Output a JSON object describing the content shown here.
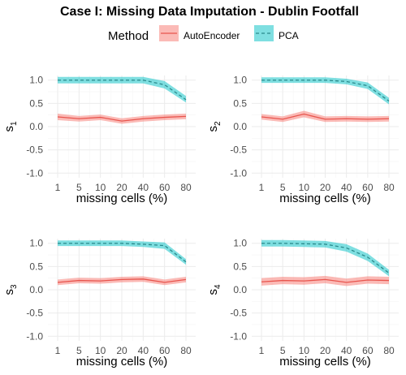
{
  "title": "Case I: Missing Data Imputation - Dublin Footfall",
  "legend": {
    "title": "Method",
    "items": [
      {
        "label": "AutoEncoder",
        "color": "#F8766D",
        "dash": "solid"
      },
      {
        "label": "PCA",
        "color": "#00BFC4",
        "dash": "dashed"
      }
    ]
  },
  "chart_data": [
    {
      "type": "line",
      "panel": "s1",
      "ylabel_main": "s",
      "ylabel_sub": "1",
      "xlabel": "missing cells (%)",
      "categories": [
        "1",
        "5",
        "10",
        "20",
        "40",
        "60",
        "80"
      ],
      "ylim": [
        -1.1,
        1.1
      ],
      "yticks": [
        "1.0",
        "0.5",
        "0.0",
        "-0.5",
        "-1.0"
      ],
      "series": [
        {
          "name": "AutoEncoder",
          "values": [
            0.21,
            0.17,
            0.2,
            0.12,
            0.17,
            0.2,
            0.22
          ],
          "lower": [
            0.14,
            0.11,
            0.14,
            0.06,
            0.11,
            0.14,
            0.16
          ],
          "upper": [
            0.28,
            0.23,
            0.26,
            0.18,
            0.23,
            0.26,
            0.28
          ]
        },
        {
          "name": "PCA",
          "values": [
            1.0,
            1.0,
            1.0,
            1.0,
            1.0,
            0.9,
            0.58
          ],
          "lower": [
            0.93,
            0.93,
            0.93,
            0.93,
            0.93,
            0.82,
            0.52
          ],
          "upper": [
            1.07,
            1.07,
            1.07,
            1.07,
            1.07,
            0.98,
            0.66
          ]
        }
      ]
    },
    {
      "type": "line",
      "panel": "s2",
      "ylabel_main": "s",
      "ylabel_sub": "2",
      "xlabel": "missing cells (%)",
      "categories": [
        "1",
        "5",
        "10",
        "20",
        "40",
        "60",
        "80"
      ],
      "ylim": [
        -1.1,
        1.1
      ],
      "yticks": [
        "1.0",
        "0.5",
        "0.0",
        "-0.5",
        "-1.0"
      ],
      "series": [
        {
          "name": "AutoEncoder",
          "values": [
            0.21,
            0.16,
            0.27,
            0.16,
            0.17,
            0.16,
            0.17
          ],
          "lower": [
            0.15,
            0.1,
            0.2,
            0.1,
            0.11,
            0.1,
            0.11
          ],
          "upper": [
            0.27,
            0.22,
            0.34,
            0.22,
            0.23,
            0.22,
            0.23
          ]
        },
        {
          "name": "PCA",
          "values": [
            1.0,
            1.0,
            1.0,
            1.0,
            0.97,
            0.88,
            0.55
          ],
          "lower": [
            0.94,
            0.94,
            0.94,
            0.94,
            0.91,
            0.81,
            0.48
          ],
          "upper": [
            1.06,
            1.06,
            1.06,
            1.06,
            1.03,
            0.95,
            0.62
          ]
        }
      ]
    },
    {
      "type": "line",
      "panel": "s3",
      "ylabel_main": "s",
      "ylabel_sub": "3",
      "xlabel": "missing cells (%)",
      "categories": [
        "1",
        "5",
        "10",
        "20",
        "40",
        "60",
        "80"
      ],
      "ylim": [
        -1.1,
        1.1
      ],
      "yticks": [
        "1.0",
        "0.5",
        "0.0",
        "-0.5",
        "-1.0"
      ],
      "series": [
        {
          "name": "AutoEncoder",
          "values": [
            0.16,
            0.2,
            0.19,
            0.22,
            0.23,
            0.16,
            0.22
          ],
          "lower": [
            0.1,
            0.14,
            0.13,
            0.16,
            0.17,
            0.1,
            0.16
          ],
          "upper": [
            0.22,
            0.26,
            0.25,
            0.28,
            0.29,
            0.22,
            0.28
          ]
        },
        {
          "name": "PCA",
          "values": [
            1.0,
            1.0,
            1.0,
            1.0,
            0.98,
            0.95,
            0.6
          ],
          "lower": [
            0.94,
            0.94,
            0.94,
            0.94,
            0.92,
            0.88,
            0.54
          ],
          "upper": [
            1.06,
            1.06,
            1.06,
            1.06,
            1.04,
            1.02,
            0.66
          ]
        }
      ]
    },
    {
      "type": "line",
      "panel": "s4",
      "ylabel_main": "s",
      "ylabel_sub": "4",
      "xlabel": "missing cells (%)",
      "categories": [
        "1",
        "5",
        "10",
        "20",
        "40",
        "60",
        "80"
      ],
      "ylim": [
        -1.1,
        1.1
      ],
      "yticks": [
        "1.0",
        "0.5",
        "0.0",
        "-0.5",
        "-1.0"
      ],
      "series": [
        {
          "name": "AutoEncoder",
          "values": [
            0.17,
            0.2,
            0.19,
            0.22,
            0.16,
            0.21,
            0.2
          ],
          "lower": [
            0.09,
            0.12,
            0.11,
            0.14,
            0.08,
            0.13,
            0.12
          ],
          "upper": [
            0.25,
            0.28,
            0.27,
            0.3,
            0.24,
            0.29,
            0.28
          ]
        },
        {
          "name": "PCA",
          "values": [
            1.0,
            1.0,
            0.99,
            0.98,
            0.9,
            0.7,
            0.36
          ],
          "lower": [
            0.93,
            0.93,
            0.92,
            0.91,
            0.82,
            0.62,
            0.29
          ],
          "upper": [
            1.07,
            1.07,
            1.06,
            1.05,
            0.98,
            0.78,
            0.43
          ]
        }
      ]
    }
  ]
}
